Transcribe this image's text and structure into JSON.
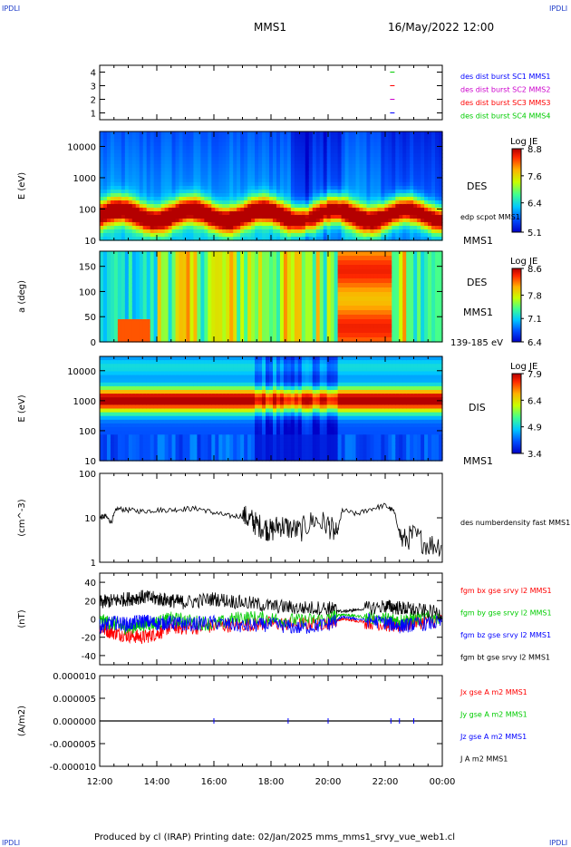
{
  "header": {
    "logo_left": "IPDLI",
    "logo_right": "IPDLI",
    "spacecraft": "MMS1",
    "datetime": "16/May/2022 12:00"
  },
  "footer": {
    "text": "Produced by cl (IRAP)   Printing date: 02/Jan/2025   mms_mms1_srvy_vue_web1.cl",
    "logo_left": "IPDLI",
    "logo_right": "IPDLI"
  },
  "x_axis": {
    "ticks": [
      "12:00",
      "14:00",
      "16:00",
      "18:00",
      "20:00",
      "22:00",
      "00:00"
    ],
    "range_hours": [
      12,
      24
    ]
  },
  "colors": {
    "red": "#ff0000",
    "green": "#00cc00",
    "blue": "#0000ff",
    "black": "#000000",
    "magenta": "#cc00cc"
  },
  "chart_data": [
    {
      "type": "scatter",
      "panel": "burst",
      "yticks": [
        "4",
        "3",
        "2",
        "1"
      ],
      "ylim": [
        0.5,
        4.5
      ],
      "legend": [
        {
          "label": "des dist burst SC1 MMS1",
          "color": "#0000ff"
        },
        {
          "label": "des dist burst SC2 MMS2",
          "color": "#cc00cc"
        },
        {
          "label": "des dist burst SC3 MMS3",
          "color": "#ff0000"
        },
        {
          "label": "des dist burst SC4 MMS4",
          "color": "#00cc00"
        }
      ],
      "series": [
        {
          "name": "des dist burst SC1 MMS1",
          "x": [
            22.25
          ],
          "y": [
            1
          ]
        },
        {
          "name": "des dist burst SC2 MMS2",
          "x": [
            22.25
          ],
          "y": [
            2
          ]
        },
        {
          "name": "des dist burst SC3 MMS3",
          "x": [
            22.25
          ],
          "y": [
            3
          ]
        },
        {
          "name": "des dist burst SC4 MMS4",
          "x": [
            22.25
          ],
          "y": [
            4
          ]
        }
      ]
    },
    {
      "type": "heatmap",
      "panel": "des_energy",
      "ylabel": "E (eV)",
      "yscale": "log",
      "yticks": [
        "10000",
        "1000",
        "100",
        "10"
      ],
      "ylim": [
        10,
        30000
      ],
      "right_labels": [
        "DES",
        "edp scpot MMS1",
        "MMS1"
      ],
      "colorbar": {
        "title": "Log JE",
        "ticks": [
          "8.8",
          "7.6",
          "6.4",
          "5.1"
        ],
        "range": [
          5.1,
          8.8
        ]
      }
    },
    {
      "type": "heatmap",
      "panel": "des_pitch",
      "ylabel": "a (deg)",
      "yticks": [
        "150",
        "100",
        "50",
        "0"
      ],
      "ylim": [
        0,
        180
      ],
      "right_labels": [
        "DES",
        "MMS1",
        "139-185 eV"
      ],
      "colorbar": {
        "title": "Log JE",
        "ticks": [
          "8.6",
          "7.8",
          "7.1",
          "6.4"
        ],
        "range": [
          6.4,
          8.6
        ]
      }
    },
    {
      "type": "heatmap",
      "panel": "dis_energy",
      "ylabel": "E (eV)",
      "yscale": "log",
      "yticks": [
        "10000",
        "1000",
        "100",
        "10"
      ],
      "ylim": [
        10,
        30000
      ],
      "right_labels": [
        "DIS",
        "MMS1"
      ],
      "colorbar": {
        "title": "Log JE",
        "ticks": [
          "7.9",
          "6.4",
          "4.9",
          "3.4"
        ],
        "range": [
          3.4,
          7.9
        ]
      }
    },
    {
      "type": "line",
      "panel": "density",
      "ylabel": "(cm^-3)",
      "yscale": "log",
      "yticks": [
        "100",
        "10",
        "1"
      ],
      "ylim": [
        1,
        100
      ],
      "legend": [
        {
          "label": "des numberdensity fast MMS1",
          "color": "#000000"
        }
      ],
      "series": [
        {
          "name": "des numberdensity fast MMS1",
          "x": [
            12.0,
            12.2,
            12.4,
            12.6,
            13.0,
            13.5,
            14.0,
            14.5,
            15.0,
            15.5,
            16.0,
            16.5,
            17.0,
            17.3,
            17.5,
            17.8,
            18.0,
            18.3,
            18.6,
            19.0,
            19.5,
            20.0,
            20.3,
            20.5,
            21.0,
            21.5,
            22.0,
            22.3,
            22.6,
            23.0,
            23.5,
            24.0
          ],
          "y": [
            10,
            11,
            8,
            16,
            15,
            14,
            15,
            15,
            16,
            16,
            13,
            11,
            11,
            9,
            7,
            6,
            5,
            7,
            6,
            5,
            9,
            7,
            4,
            15,
            12,
            16,
            19,
            14,
            3,
            4,
            2.5,
            2.5
          ]
        }
      ]
    },
    {
      "type": "line",
      "panel": "fgm",
      "ylabel": "(nT)",
      "yticks": [
        "40",
        "20",
        "0",
        "-20",
        "-40"
      ],
      "ylim": [
        -50,
        50
      ],
      "legend": [
        {
          "label": "fgm bx gse srvy l2 MMS1",
          "color": "#ff0000"
        },
        {
          "label": "fgm by gse srvy l2 MMS1",
          "color": "#00cc00"
        },
        {
          "label": "fgm bz gse srvy l2 MMS1",
          "color": "#0000ff"
        },
        {
          "label": "fgm bt gse srvy l2 MMS1",
          "color": "#000000"
        }
      ],
      "series": [
        {
          "name": "fgm bx gse srvy l2 MMS1",
          "x": [
            12,
            12.5,
            13,
            13.5,
            14,
            14.5,
            15,
            16,
            17,
            18,
            19,
            20,
            20.5,
            21,
            22,
            22.5,
            23,
            24
          ],
          "y": [
            -10,
            -15,
            -18,
            -20,
            -16,
            -8,
            -10,
            -8,
            -6,
            -5,
            -6,
            -4,
            0,
            -2,
            -6,
            -8,
            -4,
            -2
          ]
        },
        {
          "name": "fgm by gse srvy l2 MMS1",
          "x": [
            12,
            12.5,
            13,
            13.5,
            14,
            14.5,
            15,
            16,
            17,
            18,
            19,
            20,
            20.5,
            21,
            22,
            22.5,
            23,
            24
          ],
          "y": [
            -2,
            -5,
            -10,
            -6,
            -4,
            0,
            -2,
            -6,
            2,
            0,
            -2,
            0,
            5,
            3,
            0,
            -2,
            0,
            2
          ]
        },
        {
          "name": "fgm bz gse srvy l2 MMS1",
          "x": [
            12,
            12.5,
            13,
            13.5,
            14,
            14.5,
            15,
            16,
            17,
            18,
            19,
            20,
            20.5,
            21,
            22,
            22.5,
            23,
            24
          ],
          "y": [
            -8,
            -4,
            -6,
            -2,
            -5,
            -4,
            -6,
            -4,
            -8,
            -6,
            -10,
            -6,
            2,
            0,
            -4,
            -8,
            -6,
            -4
          ]
        },
        {
          "name": "fgm bt gse srvy l2 MMS1",
          "x": [
            12,
            12.5,
            13,
            13.5,
            14,
            14.5,
            15,
            16,
            17,
            18,
            19,
            20,
            20.5,
            21,
            22,
            22.5,
            23,
            24
          ],
          "y": [
            18,
            20,
            22,
            24,
            22,
            20,
            18,
            22,
            18,
            14,
            12,
            12,
            8,
            10,
            14,
            12,
            10,
            6
          ]
        }
      ]
    },
    {
      "type": "line",
      "panel": "current",
      "ylabel": "(A/m2)",
      "yticks": [
        "0.000010",
        "0.000005",
        "0.000000",
        "-0.000005",
        "-0.000010"
      ],
      "ylim": [
        -1e-05,
        1e-05
      ],
      "legend": [
        {
          "label": "Jx gse A m2 MMS1",
          "color": "#ff0000"
        },
        {
          "label": "Jy gse A m2 MMS1",
          "color": "#00cc00"
        },
        {
          "label": "Jz gse A m2 MMS1",
          "color": "#0000ff"
        },
        {
          "label": "J A m2 MMS1",
          "color": "#000000"
        }
      ],
      "series": [
        {
          "name": "J A m2 MMS1",
          "x": [
            12,
            24
          ],
          "y": [
            0,
            0
          ]
        }
      ]
    }
  ]
}
